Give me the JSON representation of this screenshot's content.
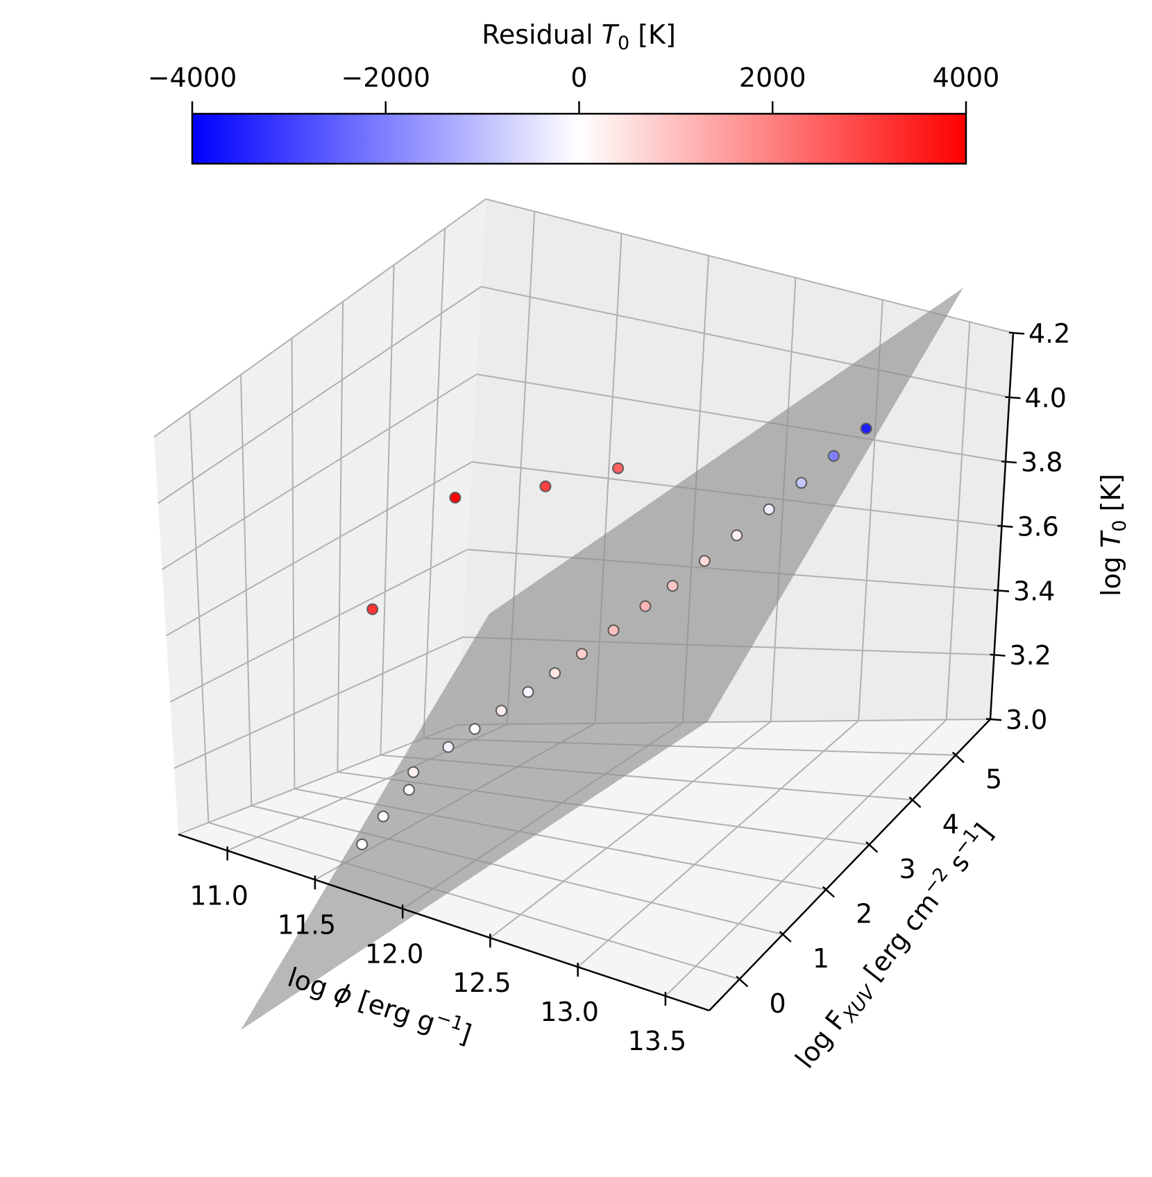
{
  "chart_data": {
    "type": "scatter",
    "projection": "3d",
    "colorbar": {
      "label": "Residual T0 [K]",
      "label_text": "Residual ",
      "label_sym": "T",
      "label_sub": "0",
      "label_unit": " [K]",
      "range": [
        -4000,
        4000
      ],
      "ticks": [
        -4000,
        -2000,
        0,
        2000,
        4000
      ],
      "tick_labels": [
        "−4000",
        "−2000",
        "0",
        "2000",
        "4000"
      ],
      "colormap": "bwr",
      "stops": [
        "#0000ff",
        "#ffffff",
        "#ff0000"
      ],
      "placement": "top"
    },
    "x_axis": {
      "label": "log ϕ [erg g⁻¹]",
      "label_pre": "log ",
      "label_sym": "ϕ",
      "label_post": " [erg g",
      "label_sup": "−1",
      "label_end": "]",
      "range": [
        10.72,
        13.75
      ],
      "ticks": [
        11.0,
        11.5,
        12.0,
        12.5,
        13.0,
        13.5
      ],
      "tick_labels": [
        "11.0",
        "11.5",
        "12.0",
        "12.5",
        "13.0",
        "13.5"
      ]
    },
    "y_axis": {
      "label": "log FXUV [erg cm⁻² s⁻¹]",
      "label_pre": "log F",
      "label_sub": "XUV",
      "label_mid": " [erg cm",
      "label_sup1": "−2",
      "label_mid2": " s",
      "label_sup2": "−1",
      "label_end": "]",
      "range": [
        -0.7,
        5.8
      ],
      "ticks": [
        0,
        1,
        2,
        3,
        4,
        5
      ],
      "tick_labels": [
        "0",
        "1",
        "2",
        "3",
        "4",
        "5"
      ]
    },
    "z_axis": {
      "label": "log T0 [K]",
      "label_pre": "log ",
      "label_sym": "T",
      "label_sub": "0",
      "label_end": " [K]",
      "range": [
        3.0,
        4.2
      ],
      "ticks": [
        3.0,
        3.2,
        3.4,
        3.6,
        3.8,
        4.0,
        4.2
      ],
      "tick_labels": [
        "3.0",
        "3.2",
        "3.4",
        "3.6",
        "3.8",
        "4.0",
        "4.2"
      ]
    },
    "grid": true,
    "colors": {
      "pane_left": "#f0f0f0",
      "pane_back": "#ececec",
      "pane_floor": "#f5f5f5",
      "grid": "#b0b0b0",
      "plane": "#8c8c8c",
      "marker_edge": "#5a5a5a"
    },
    "fit_plane": {
      "description_color": "grey",
      "opacity": 0.62
    },
    "points": [
      {
        "x": 11.55,
        "y": 0.2,
        "z": 3.05,
        "r": 0
      },
      {
        "x": 11.6,
        "y": 0.5,
        "z": 3.12,
        "r": -100
      },
      {
        "x": 11.7,
        "y": 0.7,
        "z": 3.2,
        "r": 0
      },
      {
        "x": 11.65,
        "y": 1.0,
        "z": 3.22,
        "r": 200
      },
      {
        "x": 11.8,
        "y": 1.2,
        "z": 3.3,
        "r": -200
      },
      {
        "x": 11.9,
        "y": 1.4,
        "z": 3.35,
        "r": 0
      },
      {
        "x": 12.0,
        "y": 1.6,
        "z": 3.4,
        "r": 300
      },
      {
        "x": 12.1,
        "y": 1.8,
        "z": 3.45,
        "r": -150
      },
      {
        "x": 12.2,
        "y": 2.0,
        "z": 3.5,
        "r": 400
      },
      {
        "x": 12.3,
        "y": 2.2,
        "z": 3.55,
        "r": 800
      },
      {
        "x": 12.4,
        "y": 2.5,
        "z": 3.6,
        "r": 1000
      },
      {
        "x": 12.5,
        "y": 2.8,
        "z": 3.65,
        "r": 1200
      },
      {
        "x": 12.6,
        "y": 3.0,
        "z": 3.7,
        "r": 900
      },
      {
        "x": 12.7,
        "y": 3.3,
        "z": 3.75,
        "r": 600
      },
      {
        "x": 12.8,
        "y": 3.6,
        "z": 3.8,
        "r": 200
      },
      {
        "x": 12.9,
        "y": 3.9,
        "z": 3.85,
        "r": -300
      },
      {
        "x": 13.0,
        "y": 4.2,
        "z": 3.9,
        "r": -900
      },
      {
        "x": 13.1,
        "y": 4.5,
        "z": 3.95,
        "r": -2000
      },
      {
        "x": 13.2,
        "y": 4.8,
        "z": 4.0,
        "r": -3500
      },
      {
        "x": 11.3,
        "y": 1.5,
        "z": 3.6,
        "r": 3200
      },
      {
        "x": 11.5,
        "y": 2.5,
        "z": 3.85,
        "r": 3900
      },
      {
        "x": 11.9,
        "y": 2.9,
        "z": 3.9,
        "r": 3000
      },
      {
        "x": 12.2,
        "y": 3.3,
        "z": 3.95,
        "r": 2500
      }
    ]
  }
}
